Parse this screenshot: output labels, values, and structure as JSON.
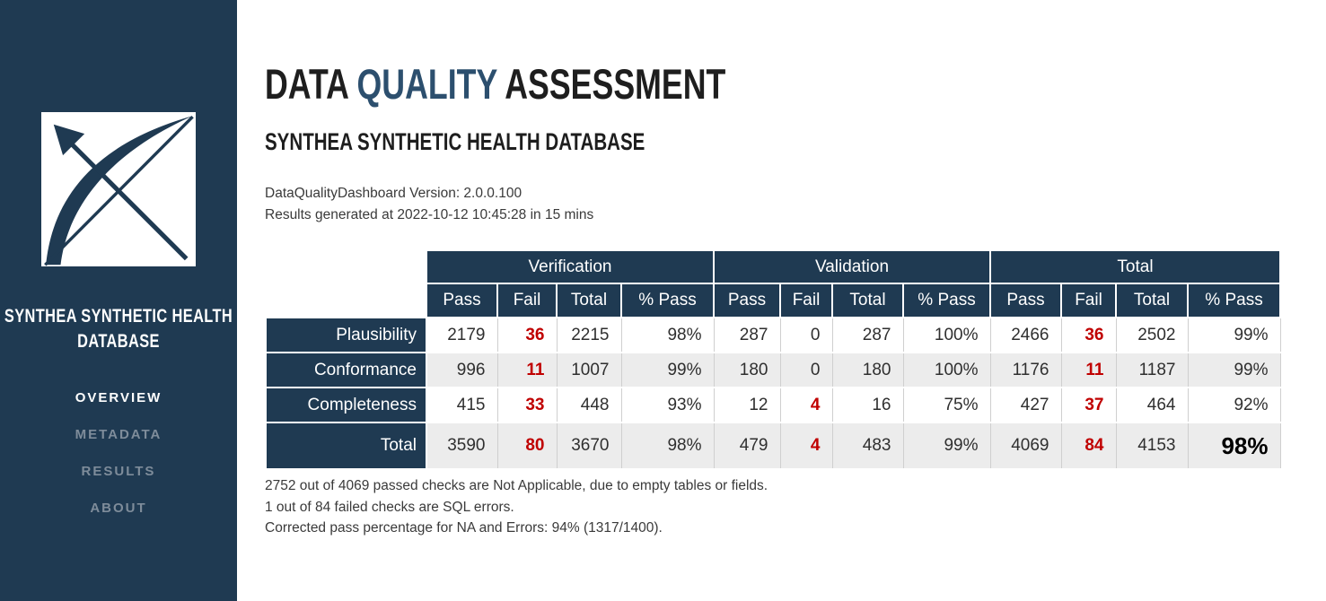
{
  "colors": {
    "navy": "#1f3a52",
    "accent_blue": "#2c4f6e",
    "fail_red": "#c00000",
    "row_alt": "#ececec"
  },
  "sidebar": {
    "logo": "bow-arrow-logo",
    "title": "SYNTHEA SYNTHETIC HEALTH DATABASE",
    "nav": [
      {
        "label": "OVERVIEW",
        "active": true
      },
      {
        "label": "METADATA",
        "active": false
      },
      {
        "label": "RESULTS",
        "active": false
      },
      {
        "label": "ABOUT",
        "active": false
      }
    ]
  },
  "header": {
    "title_part1": "DATA ",
    "title_part2": "QUALITY",
    "title_part3": " ASSESSMENT",
    "subtitle": "SYNTHEA SYNTHETIC HEALTH DATABASE",
    "version_line": "DataQualityDashboard Version: 2.0.0.100",
    "generated_line": "Results generated at 2022-10-12 10:45:28 in 15 mins"
  },
  "table": {
    "groups": [
      "Verification",
      "Validation",
      "Total"
    ],
    "sub_headers": [
      "Pass",
      "Fail",
      "Total",
      "% Pass"
    ],
    "rows": [
      {
        "label": "Plausibility",
        "verification": {
          "pass": "2179",
          "fail": "36",
          "total": "2215",
          "pct": "98%"
        },
        "validation": {
          "pass": "287",
          "fail": "0",
          "total": "287",
          "pct": "100%"
        },
        "total": {
          "pass": "2466",
          "fail": "36",
          "total": "2502",
          "pct": "99%"
        }
      },
      {
        "label": "Conformance",
        "verification": {
          "pass": "996",
          "fail": "11",
          "total": "1007",
          "pct": "99%"
        },
        "validation": {
          "pass": "180",
          "fail": "0",
          "total": "180",
          "pct": "100%"
        },
        "total": {
          "pass": "1176",
          "fail": "11",
          "total": "1187",
          "pct": "99%"
        }
      },
      {
        "label": "Completeness",
        "verification": {
          "pass": "415",
          "fail": "33",
          "total": "448",
          "pct": "93%"
        },
        "validation": {
          "pass": "12",
          "fail": "4",
          "total": "16",
          "pct": "75%"
        },
        "total": {
          "pass": "427",
          "fail": "37",
          "total": "464",
          "pct": "92%"
        }
      },
      {
        "label": "Total",
        "verification": {
          "pass": "3590",
          "fail": "80",
          "total": "3670",
          "pct": "98%"
        },
        "validation": {
          "pass": "479",
          "fail": "4",
          "total": "483",
          "pct": "99%"
        },
        "total": {
          "pass": "4069",
          "fail": "84",
          "total": "4153",
          "pct": "98%"
        }
      }
    ]
  },
  "notes": [
    "2752 out of 4069 passed checks are Not Applicable, due to empty tables or fields.",
    "1 out of 84 failed checks are SQL errors.",
    "Corrected pass percentage for NA and Errors: 94% (1317/1400)."
  ]
}
